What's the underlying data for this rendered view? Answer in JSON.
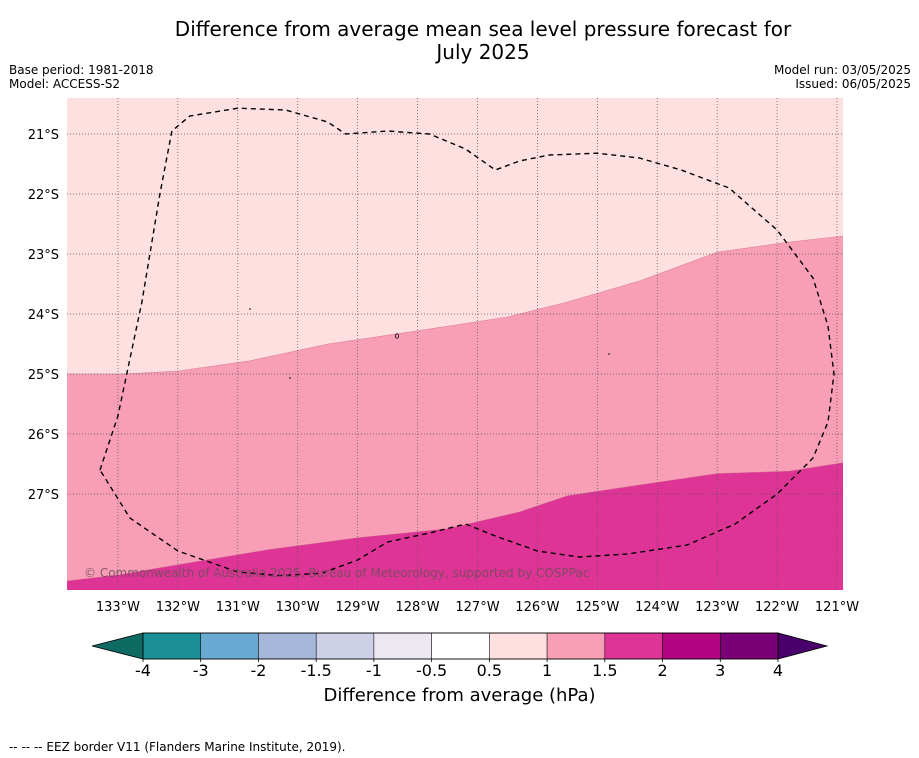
{
  "header": {
    "title_line1": "Difference from average mean sea level pressure forecast for",
    "title_line2": "July 2025",
    "base_period": "Base period: 1981-2018",
    "model": "Model: ACCESS-S2",
    "model_run": "Model run: 03/05/2025",
    "issued": "Issued: 06/05/2025"
  },
  "map": {
    "copyright": "© Commonwealth of Australia 2025, Bureau of Meteorology, supported by COSPPac"
  },
  "colorbar": {
    "label": "Difference from average (hPa)",
    "ticks": [
      "-4",
      "-3",
      "-2",
      "-1.5",
      "-1",
      "-0.5",
      "0.5",
      "1",
      "1.5",
      "2",
      "3",
      "4"
    ],
    "colors": [
      "#1a8f96",
      "#6aa9d2",
      "#a6b8da",
      "#cdd0e6",
      "#ede7f1",
      "#ffffff",
      "#fde0df",
      "#f99eb7",
      "#de3496",
      "#b20380",
      "#7a0076"
    ],
    "under_color": "#0d6b63",
    "over_color": "#4a006a"
  },
  "footer": {
    "legend_text": "--  --  -- EEZ border V11 (Flanders Marine Institute, 2019)."
  },
  "chart_data": {
    "type": "heatmap",
    "title": "Difference from average mean sea level pressure forecast for July 2025",
    "xlabel": "",
    "ylabel": "",
    "units": "hPa",
    "x_ticks": [
      "133°W",
      "132°W",
      "131°W",
      "130°W",
      "129°W",
      "128°W",
      "127°W",
      "126°W",
      "125°W",
      "124°W",
      "123°W",
      "122°W",
      "121°W"
    ],
    "y_ticks": [
      "21°S",
      "22°S",
      "23°S",
      "24°S",
      "25°S",
      "26°S",
      "27°S"
    ],
    "xlim": [
      -133.85,
      -120.9
    ],
    "ylim": [
      -28.6,
      -20.4
    ],
    "grid": true,
    "bands": [
      {
        "range": "0.5 to 1",
        "color": "#fde0df",
        "lower_boundary": [
          [
            -133.85,
            -25.0
          ],
          [
            -132.9,
            -25.0
          ],
          [
            -132.0,
            -24.95
          ],
          [
            -130.8,
            -24.78
          ],
          [
            -129.5,
            -24.5
          ],
          [
            -128.0,
            -24.28
          ],
          [
            -126.5,
            -24.05
          ],
          [
            -125.5,
            -23.8
          ],
          [
            -124.3,
            -23.45
          ],
          [
            -123.0,
            -22.97
          ],
          [
            -121.8,
            -22.8
          ],
          [
            -120.9,
            -22.7
          ]
        ]
      },
      {
        "range": "1 to 1.5",
        "color": "#f99eb7",
        "lower_boundary": [
          [
            -133.85,
            -28.45
          ],
          [
            -133.0,
            -28.35
          ],
          [
            -132.0,
            -28.18
          ],
          [
            -130.5,
            -27.93
          ],
          [
            -129.0,
            -27.73
          ],
          [
            -127.5,
            -27.58
          ],
          [
            -126.3,
            -27.3
          ],
          [
            -125.5,
            -27.03
          ],
          [
            -124.3,
            -26.85
          ],
          [
            -123.0,
            -26.66
          ],
          [
            -121.8,
            -26.62
          ],
          [
            -120.9,
            -26.48
          ]
        ]
      },
      {
        "range": "1.5 to 2",
        "color": "#de3496",
        "lower_boundary": []
      }
    ],
    "eez_border": [
      [
        -133.3,
        -26.6
      ],
      [
        -133.0,
        -25.7
      ],
      [
        -132.6,
        -23.8
      ],
      [
        -132.3,
        -22.0
      ],
      [
        -132.1,
        -20.95
      ],
      [
        -131.8,
        -20.7
      ],
      [
        -131.0,
        -20.57
      ],
      [
        -130.2,
        -20.6
      ],
      [
        -129.5,
        -20.8
      ],
      [
        -129.2,
        -21.0
      ],
      [
        -128.5,
        -20.95
      ],
      [
        -127.8,
        -21.0
      ],
      [
        -127.2,
        -21.25
      ],
      [
        -126.7,
        -21.6
      ],
      [
        -126.3,
        -21.45
      ],
      [
        -125.8,
        -21.35
      ],
      [
        -125.0,
        -21.32
      ],
      [
        -124.3,
        -21.4
      ],
      [
        -123.6,
        -21.6
      ],
      [
        -122.8,
        -21.9
      ],
      [
        -122.0,
        -22.6
      ],
      [
        -121.4,
        -23.4
      ],
      [
        -121.15,
        -24.2
      ],
      [
        -121.05,
        -25.0
      ],
      [
        -121.15,
        -25.8
      ],
      [
        -121.4,
        -26.4
      ],
      [
        -122.0,
        -27.0
      ],
      [
        -122.7,
        -27.5
      ],
      [
        -123.5,
        -27.85
      ],
      [
        -124.5,
        -28.0
      ],
      [
        -125.3,
        -28.05
      ],
      [
        -126.0,
        -27.95
      ],
      [
        -126.7,
        -27.7
      ],
      [
        -127.2,
        -27.5
      ],
      [
        -127.8,
        -27.65
      ],
      [
        -128.5,
        -27.8
      ],
      [
        -129.0,
        -28.1
      ],
      [
        -129.6,
        -28.32
      ],
      [
        -130.3,
        -28.36
      ],
      [
        -131.0,
        -28.3
      ],
      [
        -132.0,
        -27.95
      ],
      [
        -132.8,
        -27.4
      ],
      [
        -133.3,
        -26.6
      ]
    ],
    "colorbar": {
      "levels": [
        -4,
        -3,
        -2,
        -1.5,
        -1,
        -0.5,
        0.5,
        1,
        1.5,
        2,
        3,
        4
      ],
      "extend": "both"
    }
  }
}
